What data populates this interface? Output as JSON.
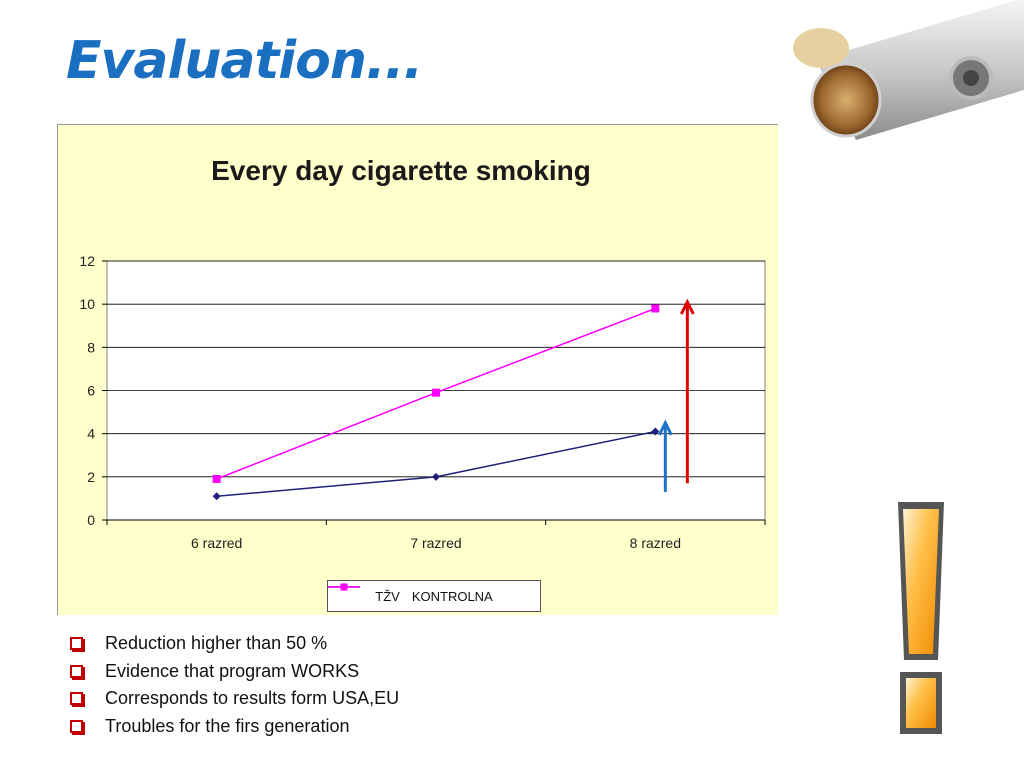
{
  "slide": {
    "title": "Evaluation...",
    "bullets": [
      "Reduction higher than 50 %",
      "Evidence that program WORKS",
      "Corresponds to results form USA,EU",
      "Troubles for the firs generation"
    ]
  },
  "chart_data": {
    "type": "line",
    "title": "Every day cigarette smoking",
    "categories": [
      "6 razred",
      "7 razred",
      "8 razred"
    ],
    "series": [
      {
        "name": "TŽV",
        "values": [
          1.1,
          2.0,
          4.1
        ],
        "color": "#1f1f7a",
        "marker": "diamond"
      },
      {
        "name": "KONTROLNA",
        "values": [
          1.9,
          5.9,
          9.8
        ],
        "color": "#ff00ff",
        "marker": "square"
      }
    ],
    "ylim": [
      0,
      12
    ],
    "yticks": [
      0,
      2,
      4,
      6,
      8,
      10,
      12
    ],
    "grid": true,
    "legend": "bottom",
    "arrows": [
      {
        "name": "blue-arrow",
        "color": "#1f72c8",
        "from": 1.3,
        "to": 4.5
      },
      {
        "name": "red-arrow",
        "color": "#e00000",
        "from": 1.7,
        "to": 10.1
      }
    ]
  },
  "colors": {
    "title": "#1a6fc0",
    "chart_background": "#ffffcc",
    "bullet": "#c00000"
  }
}
